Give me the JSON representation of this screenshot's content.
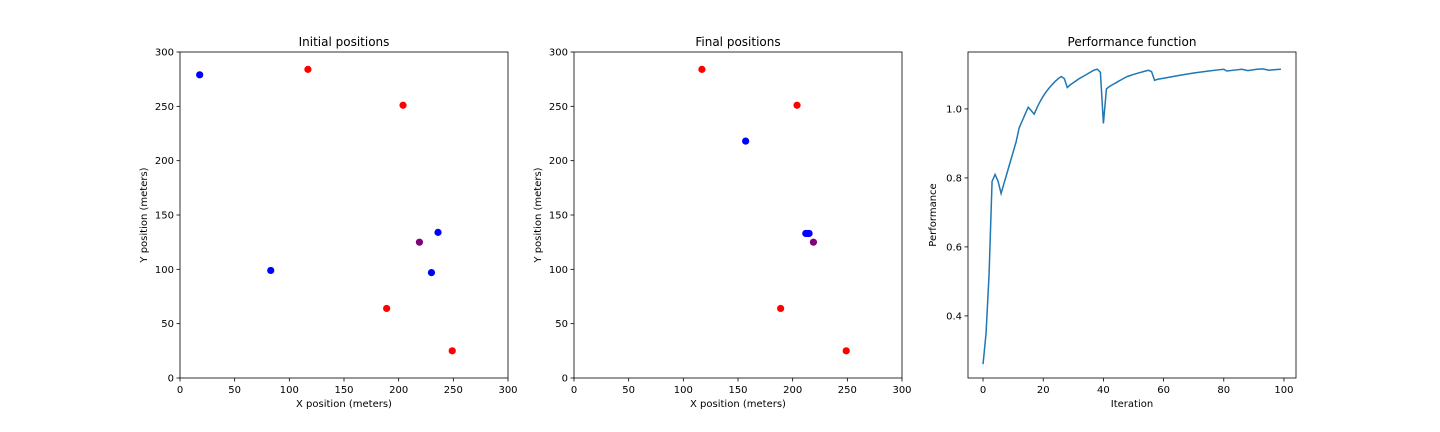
{
  "chart_data": [
    {
      "type": "scatter",
      "title": "Initial positions",
      "xlabel": "X position (meters)",
      "ylabel": "Y position (meters)",
      "xlim": [
        0,
        300
      ],
      "ylim": [
        0,
        300
      ],
      "xticks": [
        0,
        50,
        100,
        150,
        200,
        250,
        300
      ],
      "yticks": [
        0,
        50,
        100,
        150,
        200,
        250,
        300
      ],
      "grid": false,
      "series": [
        {
          "color": "#ff0000",
          "points": [
            [
              117,
              284
            ],
            [
              204,
              251
            ],
            [
              189,
              64
            ],
            [
              249,
              25
            ]
          ]
        },
        {
          "color": "#0000ff",
          "points": [
            [
              18,
              279
            ],
            [
              83,
              99
            ],
            [
              236,
              134
            ],
            [
              230,
              97
            ]
          ]
        },
        {
          "color": "#800080",
          "points": [
            [
              219,
              125
            ]
          ]
        }
      ]
    },
    {
      "type": "scatter",
      "title": "Final positions",
      "xlabel": "X position (meters)",
      "ylabel": "Y position (meters)",
      "xlim": [
        0,
        300
      ],
      "ylim": [
        0,
        300
      ],
      "xticks": [
        0,
        50,
        100,
        150,
        200,
        250,
        300
      ],
      "yticks": [
        0,
        50,
        100,
        150,
        200,
        250,
        300
      ],
      "grid": false,
      "series": [
        {
          "color": "#ff0000",
          "points": [
            [
              117,
              284
            ],
            [
              204,
              251
            ],
            [
              189,
              64
            ],
            [
              249,
              25
            ]
          ]
        },
        {
          "color": "#0000ff",
          "points": [
            [
              157,
              218
            ],
            [
              212,
              133
            ],
            [
              214,
              133
            ],
            [
              215,
              133
            ]
          ]
        },
        {
          "color": "#800080",
          "points": [
            [
              219,
              125
            ]
          ]
        }
      ]
    },
    {
      "type": "line",
      "title": "Performance function",
      "xlabel": "Iteration",
      "ylabel": "Performance",
      "xlim": [
        -5,
        104
      ],
      "ylim": [
        0.22,
        1.165
      ],
      "xticks": [
        0,
        20,
        40,
        60,
        80,
        100
      ],
      "yticks": [
        0.4,
        0.6,
        0.8,
        1.0
      ],
      "ytick_labels": [
        "0.4",
        "0.6",
        "0.8",
        "1.0"
      ],
      "grid": false,
      "series": [
        {
          "color": "#1f77b4",
          "points": [
            [
              0,
              0.26
            ],
            [
              1,
              0.35
            ],
            [
              2,
              0.52
            ],
            [
              3,
              0.79
            ],
            [
              4,
              0.81
            ],
            [
              5,
              0.79
            ],
            [
              6,
              0.755
            ],
            [
              7,
              0.785
            ],
            [
              8,
              0.815
            ],
            [
              9,
              0.845
            ],
            [
              10,
              0.875
            ],
            [
              11,
              0.905
            ],
            [
              12,
              0.945
            ],
            [
              13,
              0.965
            ],
            [
              14,
              0.985
            ],
            [
              15,
              1.005
            ],
            [
              16,
              0.995
            ],
            [
              17,
              0.985
            ],
            [
              18,
              1.005
            ],
            [
              19,
              1.022
            ],
            [
              20,
              1.037
            ],
            [
              21,
              1.05
            ],
            [
              22,
              1.061
            ],
            [
              23,
              1.071
            ],
            [
              24,
              1.08
            ],
            [
              25,
              1.088
            ],
            [
              26,
              1.094
            ],
            [
              27,
              1.088
            ],
            [
              28,
              1.062
            ],
            [
              29,
              1.07
            ],
            [
              30,
              1.076
            ],
            [
              31,
              1.082
            ],
            [
              32,
              1.088
            ],
            [
              33,
              1.093
            ],
            [
              34,
              1.098
            ],
            [
              35,
              1.103
            ],
            [
              36,
              1.108
            ],
            [
              37,
              1.113
            ],
            [
              38,
              1.115
            ],
            [
              39,
              1.106
            ],
            [
              40,
              0.958
            ],
            [
              41,
              1.058
            ],
            [
              42,
              1.065
            ],
            [
              43,
              1.07
            ],
            [
              44,
              1.075
            ],
            [
              45,
              1.08
            ],
            [
              46,
              1.085
            ],
            [
              47,
              1.09
            ],
            [
              48,
              1.094
            ],
            [
              50,
              1.1
            ],
            [
              52,
              1.105
            ],
            [
              54,
              1.11
            ],
            [
              55,
              1.112
            ],
            [
              56,
              1.108
            ],
            [
              57,
              1.083
            ],
            [
              58,
              1.086
            ],
            [
              60,
              1.089
            ],
            [
              65,
              1.097
            ],
            [
              70,
              1.104
            ],
            [
              75,
              1.11
            ],
            [
              78,
              1.113
            ],
            [
              80,
              1.115
            ],
            [
              81,
              1.11
            ],
            [
              84,
              1.113
            ],
            [
              86,
              1.115
            ],
            [
              88,
              1.111
            ],
            [
              91,
              1.115
            ],
            [
              93,
              1.116
            ],
            [
              95,
              1.112
            ],
            [
              97,
              1.114
            ],
            [
              99,
              1.115
            ]
          ]
        }
      ]
    }
  ]
}
